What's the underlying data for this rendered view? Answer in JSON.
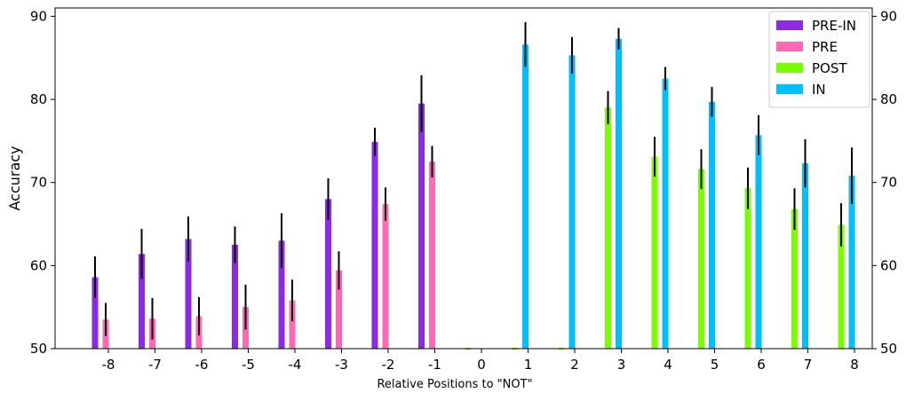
{
  "chart_data": {
    "type": "bar",
    "xlabel": "Relative Positions to \"NOT\"",
    "ylabel": "Accuracy",
    "ylim": [
      50,
      91
    ],
    "categories": [
      "-8",
      "-7",
      "-6",
      "-5",
      "-4",
      "-3",
      "-2",
      "-1",
      "0",
      "1",
      "2",
      "3",
      "4",
      "5",
      "6",
      "7",
      "8"
    ],
    "y_ticks": [
      "50",
      "60",
      "70",
      "80",
      "90"
    ],
    "grid": false,
    "legend_position": "top-right",
    "series": [
      {
        "name": "PRE-IN",
        "color": "#8A2BE2",
        "values": [
          58.6,
          61.4,
          63.2,
          62.5,
          63.0,
          68.0,
          74.9,
          79.5,
          null,
          null,
          null,
          null,
          null,
          null,
          null,
          null,
          null
        ],
        "errors": [
          2.5,
          3.0,
          2.7,
          2.2,
          3.3,
          2.5,
          1.7,
          3.4,
          null,
          null,
          null,
          null,
          null,
          null,
          null,
          null,
          null
        ]
      },
      {
        "name": "PRE",
        "color": "#FF69B4",
        "values": [
          53.5,
          53.6,
          53.9,
          55.0,
          55.8,
          59.4,
          67.4,
          72.5,
          null,
          null,
          null,
          null,
          null,
          null,
          null,
          null,
          null
        ],
        "errors": [
          2.0,
          2.5,
          2.3,
          2.7,
          2.5,
          2.3,
          2.0,
          1.9,
          null,
          null,
          null,
          null,
          null,
          null,
          null,
          null,
          null
        ]
      },
      {
        "name": "POST",
        "color": "#7CFC00",
        "values": [
          null,
          null,
          null,
          null,
          null,
          null,
          null,
          null,
          null,
          null,
          null,
          79.0,
          73.1,
          71.6,
          69.3,
          66.8,
          64.9
        ],
        "errors": [
          null,
          null,
          null,
          null,
          null,
          null,
          null,
          null,
          null,
          null,
          null,
          2.0,
          2.4,
          2.4,
          2.5,
          2.5,
          2.6
        ]
      },
      {
        "name": "IN",
        "color": "#00BFFF",
        "values": [
          null,
          null,
          null,
          null,
          null,
          null,
          null,
          null,
          null,
          86.6,
          85.3,
          87.3,
          82.5,
          79.7,
          75.7,
          72.3,
          70.8
        ],
        "errors": [
          null,
          null,
          null,
          null,
          null,
          null,
          null,
          null,
          null,
          2.7,
          2.2,
          1.3,
          1.4,
          1.8,
          2.4,
          2.9,
          3.4
        ]
      }
    ]
  }
}
